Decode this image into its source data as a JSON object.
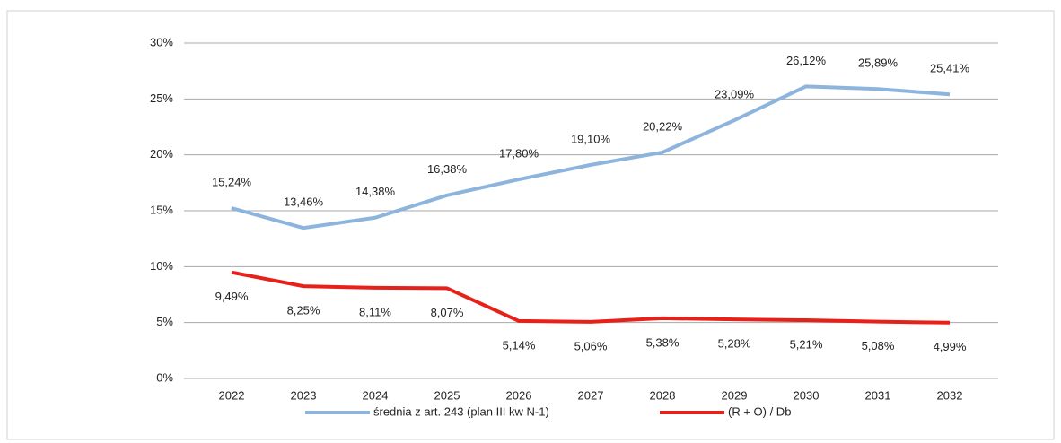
{
  "chart_data": {
    "type": "line",
    "categories": [
      "2022",
      "2023",
      "2024",
      "2025",
      "2026",
      "2027",
      "2028",
      "2029",
      "2030",
      "2031",
      "2032"
    ],
    "series": [
      {
        "name": "średnia z art. 243 (plan III kw N-1)",
        "color": "#8db4dc",
        "values": [
          15.24,
          13.46,
          14.38,
          16.38,
          17.8,
          19.1,
          20.22,
          23.09,
          26.12,
          25.89,
          25.41
        ],
        "value_labels": [
          "15,24%",
          "13,46%",
          "14,38%",
          "16,38%",
          "17,80%",
          "19,10%",
          "20,22%",
          "23,09%",
          "26,12%",
          "25,89%",
          "25,41%"
        ]
      },
      {
        "name": "(R + O) / Db",
        "color": "#e8201a",
        "values": [
          9.49,
          8.25,
          8.11,
          8.07,
          5.14,
          5.06,
          5.38,
          5.28,
          5.21,
          5.08,
          4.99
        ],
        "value_labels": [
          "9,49%",
          "8,25%",
          "8,11%",
          "8,07%",
          "5,14%",
          "5,06%",
          "5,38%",
          "5,28%",
          "5,21%",
          "5,08%",
          "4,99%"
        ]
      }
    ],
    "ylim": [
      0,
      30
    ],
    "yticks": [
      {
        "value": 0,
        "label": "0%"
      },
      {
        "value": 5,
        "label": "5%"
      },
      {
        "value": 10,
        "label": "10%"
      },
      {
        "value": 15,
        "label": "15%"
      },
      {
        "value": 20,
        "label": "20%"
      },
      {
        "value": 25,
        "label": "25%"
      },
      {
        "value": 30,
        "label": "30%"
      }
    ],
    "grid": true
  }
}
